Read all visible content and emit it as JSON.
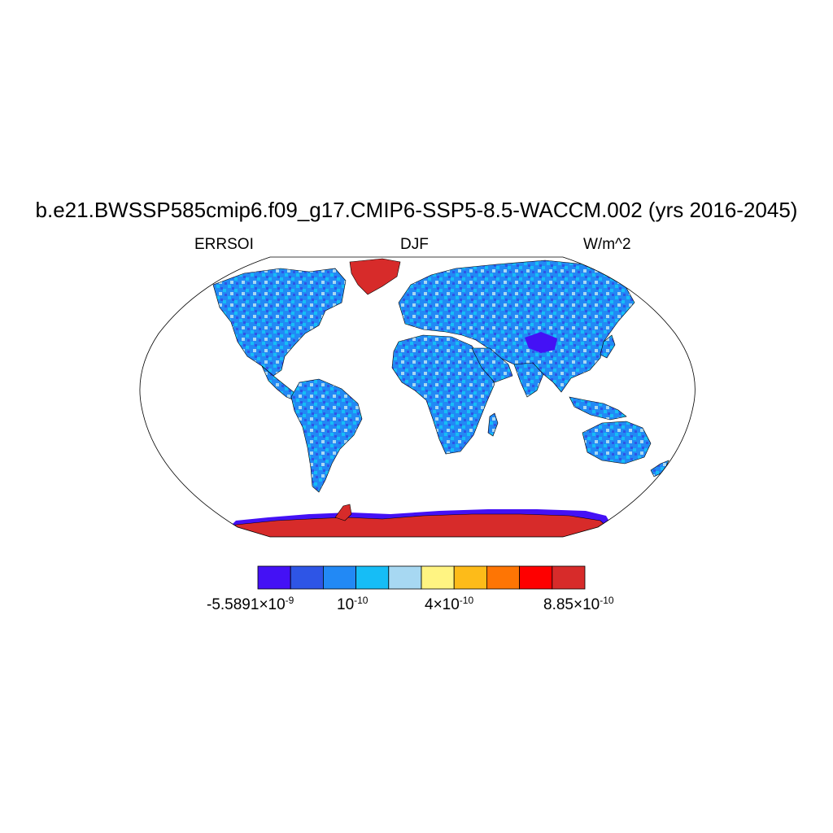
{
  "title": "b.e21.BWSSP585cmip6.f09_g17.CMIP6-SSP5-8.5-WACCM.002 (yrs 2016-2045)",
  "left_string": "ERRSOI",
  "center_string": "DJF",
  "right_string": "W/m^2",
  "colorbar": {
    "colors": [
      "#4411f5",
      "#2e55e6",
      "#2289f5",
      "#16bdf6",
      "#a7d8f2",
      "#fff482",
      "#fdbb19",
      "#fe7504",
      "#fe0000",
      "#d72b2a"
    ],
    "labels": [
      {
        "mantissa": "-5.5891×10",
        "exponent": "-9"
      },
      {
        "mantissa": "10",
        "exponent": "-10"
      },
      {
        "mantissa": "4×10",
        "exponent": "-10"
      },
      {
        "mantissa": "8.85×10",
        "exponent": "-10"
      }
    ]
  },
  "map": {
    "projection": "Robinson",
    "land_fill_dominant": "#2289f5",
    "land_fill_secondary": "#16bdf6",
    "greenland_fill": "#d72b2a",
    "antarctica_fill": "#d72b2a",
    "antarctic_coast_fill": "#4411f5",
    "tibet_fill": "#4411f5"
  }
}
